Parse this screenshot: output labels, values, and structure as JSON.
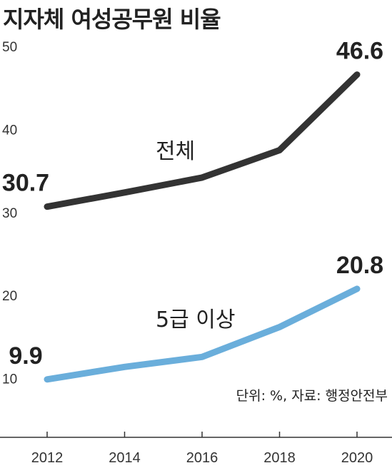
{
  "title": "지자체 여성공무원 비율",
  "unit_note": "단위: %, 자료: 행정안전부",
  "chart_data": {
    "type": "line",
    "title": "지자체 여성공무원 비율",
    "x": [
      "2012",
      "2014",
      "2016",
      "2018",
      "2020"
    ],
    "ylim": [
      0,
      50
    ],
    "yticks": [
      "10",
      "20",
      "30",
      "40",
      "50"
    ],
    "grid": false,
    "series": [
      {
        "name": "전체",
        "values": [
          30.7,
          32.4,
          34.2,
          37.5,
          46.6
        ],
        "color": "#333333",
        "labels": [
          "30.7",
          "",
          "",
          "",
          "46.6"
        ]
      },
      {
        "name": "5급 이상",
        "values": [
          9.9,
          11.4,
          12.6,
          16.2,
          20.8
        ],
        "color": "#6aaedb",
        "labels": [
          "9.9",
          "",
          "",
          "",
          "20.8"
        ]
      }
    ]
  }
}
